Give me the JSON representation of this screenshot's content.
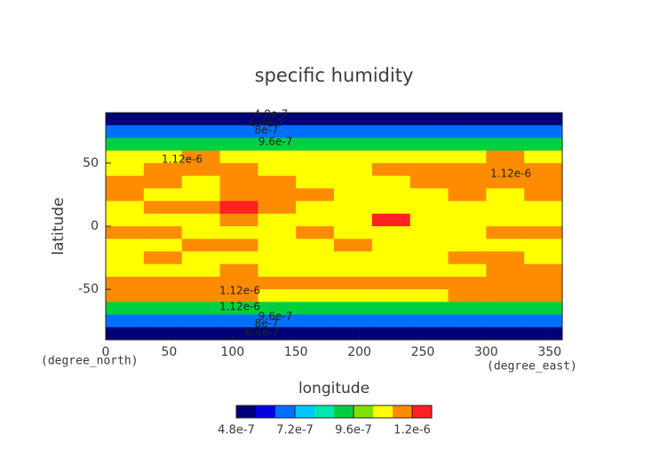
{
  "chart_data": {
    "type": "contour",
    "title": "specific humidity",
    "x_label": "longitude",
    "y_label": "latitude",
    "x_unit": "(degree_east)",
    "y_unit": "(degree_north)",
    "x": [
      15,
      45,
      75,
      105,
      135,
      165,
      195,
      225,
      255,
      285,
      315,
      345
    ],
    "y": [
      85,
      75,
      65,
      55,
      45,
      35,
      25,
      15,
      5,
      -5,
      -15,
      -25,
      -35,
      -45,
      -55,
      -65,
      -75,
      -85
    ],
    "z": [
      [
        4.5e-07,
        4.5e-07,
        4.5e-07,
        4.5e-07,
        4.5e-07,
        4.5e-07,
        4.5e-07,
        4.5e-07,
        4.5e-07,
        4.5e-07,
        4.5e-07,
        4.5e-07
      ],
      [
        6.8e-07,
        6.8e-07,
        6.8e-07,
        6.8e-07,
        6.8e-07,
        6.8e-07,
        6.8e-07,
        6.8e-07,
        6.8e-07,
        6.8e-07,
        6.8e-07,
        6.8e-07
      ],
      [
        9e-07,
        9e-07,
        9e-07,
        9e-07,
        9e-07,
        9e-07,
        9e-07,
        9e-07,
        9e-07,
        9e-07,
        9e-07,
        9e-07
      ],
      [
        1.07e-06,
        1.08e-06,
        1.14e-06,
        1.08e-06,
        1.07e-06,
        1.07e-06,
        1.07e-06,
        1.07e-06,
        1.08e-06,
        1.08e-06,
        1.14e-06,
        1.08e-06
      ],
      [
        1.1e-06,
        1.14e-06,
        1.15e-06,
        1.14e-06,
        1.1e-06,
        1.09e-06,
        1.09e-06,
        1.14e-06,
        1.15e-06,
        1.14e-06,
        1.15e-06,
        1.14e-06
      ],
      [
        1.15e-06,
        1.14e-06,
        1.1e-06,
        1.15e-06,
        1.16e-06,
        1.1e-06,
        1.09e-06,
        1.1e-06,
        1.14e-06,
        1.15e-06,
        1.16e-06,
        1.15e-06
      ],
      [
        1.14e-06,
        1.1e-06,
        1.1e-06,
        1.15e-06,
        1.17e-06,
        1.14e-06,
        1.1e-06,
        1.09e-06,
        1.1e-06,
        1.14e-06,
        1.1e-06,
        1.15e-06
      ],
      [
        1.1e-06,
        1.14e-06,
        1.15e-06,
        1.21e-06,
        1.16e-06,
        1.1e-06,
        1.09e-06,
        1.1e-06,
        1.09e-06,
        1.1e-06,
        1.1e-06,
        1.1e-06
      ],
      [
        1.1e-06,
        1.1e-06,
        1.1e-06,
        1.14e-06,
        1.1e-06,
        1.1e-06,
        1.09e-06,
        1.21e-06,
        1.1e-06,
        1.09e-06,
        1.1e-06,
        1.1e-06
      ],
      [
        1.14e-06,
        1.15e-06,
        1.1e-06,
        1.09e-06,
        1.1e-06,
        1.14e-06,
        1.1e-06,
        1.09e-06,
        1.09e-06,
        1.1e-06,
        1.14e-06,
        1.14e-06
      ],
      [
        1.1e-06,
        1.1e-06,
        1.15e-06,
        1.14e-06,
        1.1e-06,
        1.09e-06,
        1.14e-06,
        1.1e-06,
        1.09e-06,
        1.09e-06,
        1.1e-06,
        1.1e-06
      ],
      [
        1.09e-06,
        1.14e-06,
        1.1e-06,
        1.1e-06,
        1.09e-06,
        1.09e-06,
        1.1e-06,
        1.09e-06,
        1.09e-06,
        1.14e-06,
        1.15e-06,
        1.1e-06
      ],
      [
        1.1e-06,
        1.1e-06,
        1.09e-06,
        1.14e-06,
        1.1e-06,
        1.1e-06,
        1.09e-06,
        1.1e-06,
        1.1e-06,
        1.09e-06,
        1.14e-06,
        1.14e-06
      ],
      [
        1.15e-06,
        1.15e-06,
        1.14e-06,
        1.15e-06,
        1.16e-06,
        1.15e-06,
        1.15e-06,
        1.14e-06,
        1.15e-06,
        1.15e-06,
        1.16e-06,
        1.15e-06
      ],
      [
        1.14e-06,
        1.14e-06,
        1.15e-06,
        1.14e-06,
        1.1e-06,
        1.1e-06,
        1.09e-06,
        1.1e-06,
        1.1e-06,
        1.14e-06,
        1.14e-06,
        1.14e-06
      ],
      [
        9.3e-07,
        9.3e-07,
        9.3e-07,
        9.3e-07,
        9.3e-07,
        9.3e-07,
        9.3e-07,
        9.3e-07,
        9.3e-07,
        9.3e-07,
        9.3e-07,
        9.3e-07
      ],
      [
        7e-07,
        7e-07,
        7e-07,
        7e-07,
        7e-07,
        7e-07,
        7e-07,
        7e-07,
        7e-07,
        7e-07,
        7e-07,
        7e-07
      ],
      [
        5.4e-07,
        5.4e-07,
        5.4e-07,
        5.4e-07,
        5.4e-07,
        5.4e-07,
        5.4e-07,
        5.4e-07,
        5.4e-07,
        5.4e-07,
        5.4e-07,
        5.4e-07
      ]
    ],
    "xlim": [
      0,
      360
    ],
    "ylim": [
      -90,
      90
    ],
    "xticks": [
      0,
      50,
      100,
      150,
      200,
      250,
      300,
      350
    ],
    "yticks": [
      -50,
      0,
      50
    ],
    "annotations": [
      "4.8e-7",
      "6.4e-7",
      "8e-7",
      "9.6e-7",
      "1.12e-6",
      "1.12e-6",
      "1.12e-6",
      "1.12e-6",
      "9.6e-7",
      "8e-7",
      "6.4e-7"
    ],
    "colorbar": {
      "clim": [
        4.8e-07,
        1.28e-06
      ],
      "colors": [
        "#00007a",
        "#0000e0",
        "#0070ff",
        "#00c8ff",
        "#00e8b0",
        "#00d040",
        "#80e000",
        "#ffff00",
        "#ff8c00",
        "#ff2020"
      ],
      "ticks": [
        {
          "value": 4.8e-07,
          "label": "4.8e-7"
        },
        {
          "value": 7.2e-07,
          "label": "7.2e-7"
        },
        {
          "value": 9.6e-07,
          "label": "9.6e-7"
        },
        {
          "value": 1.2e-06,
          "label": "1.2e-6"
        }
      ]
    }
  }
}
